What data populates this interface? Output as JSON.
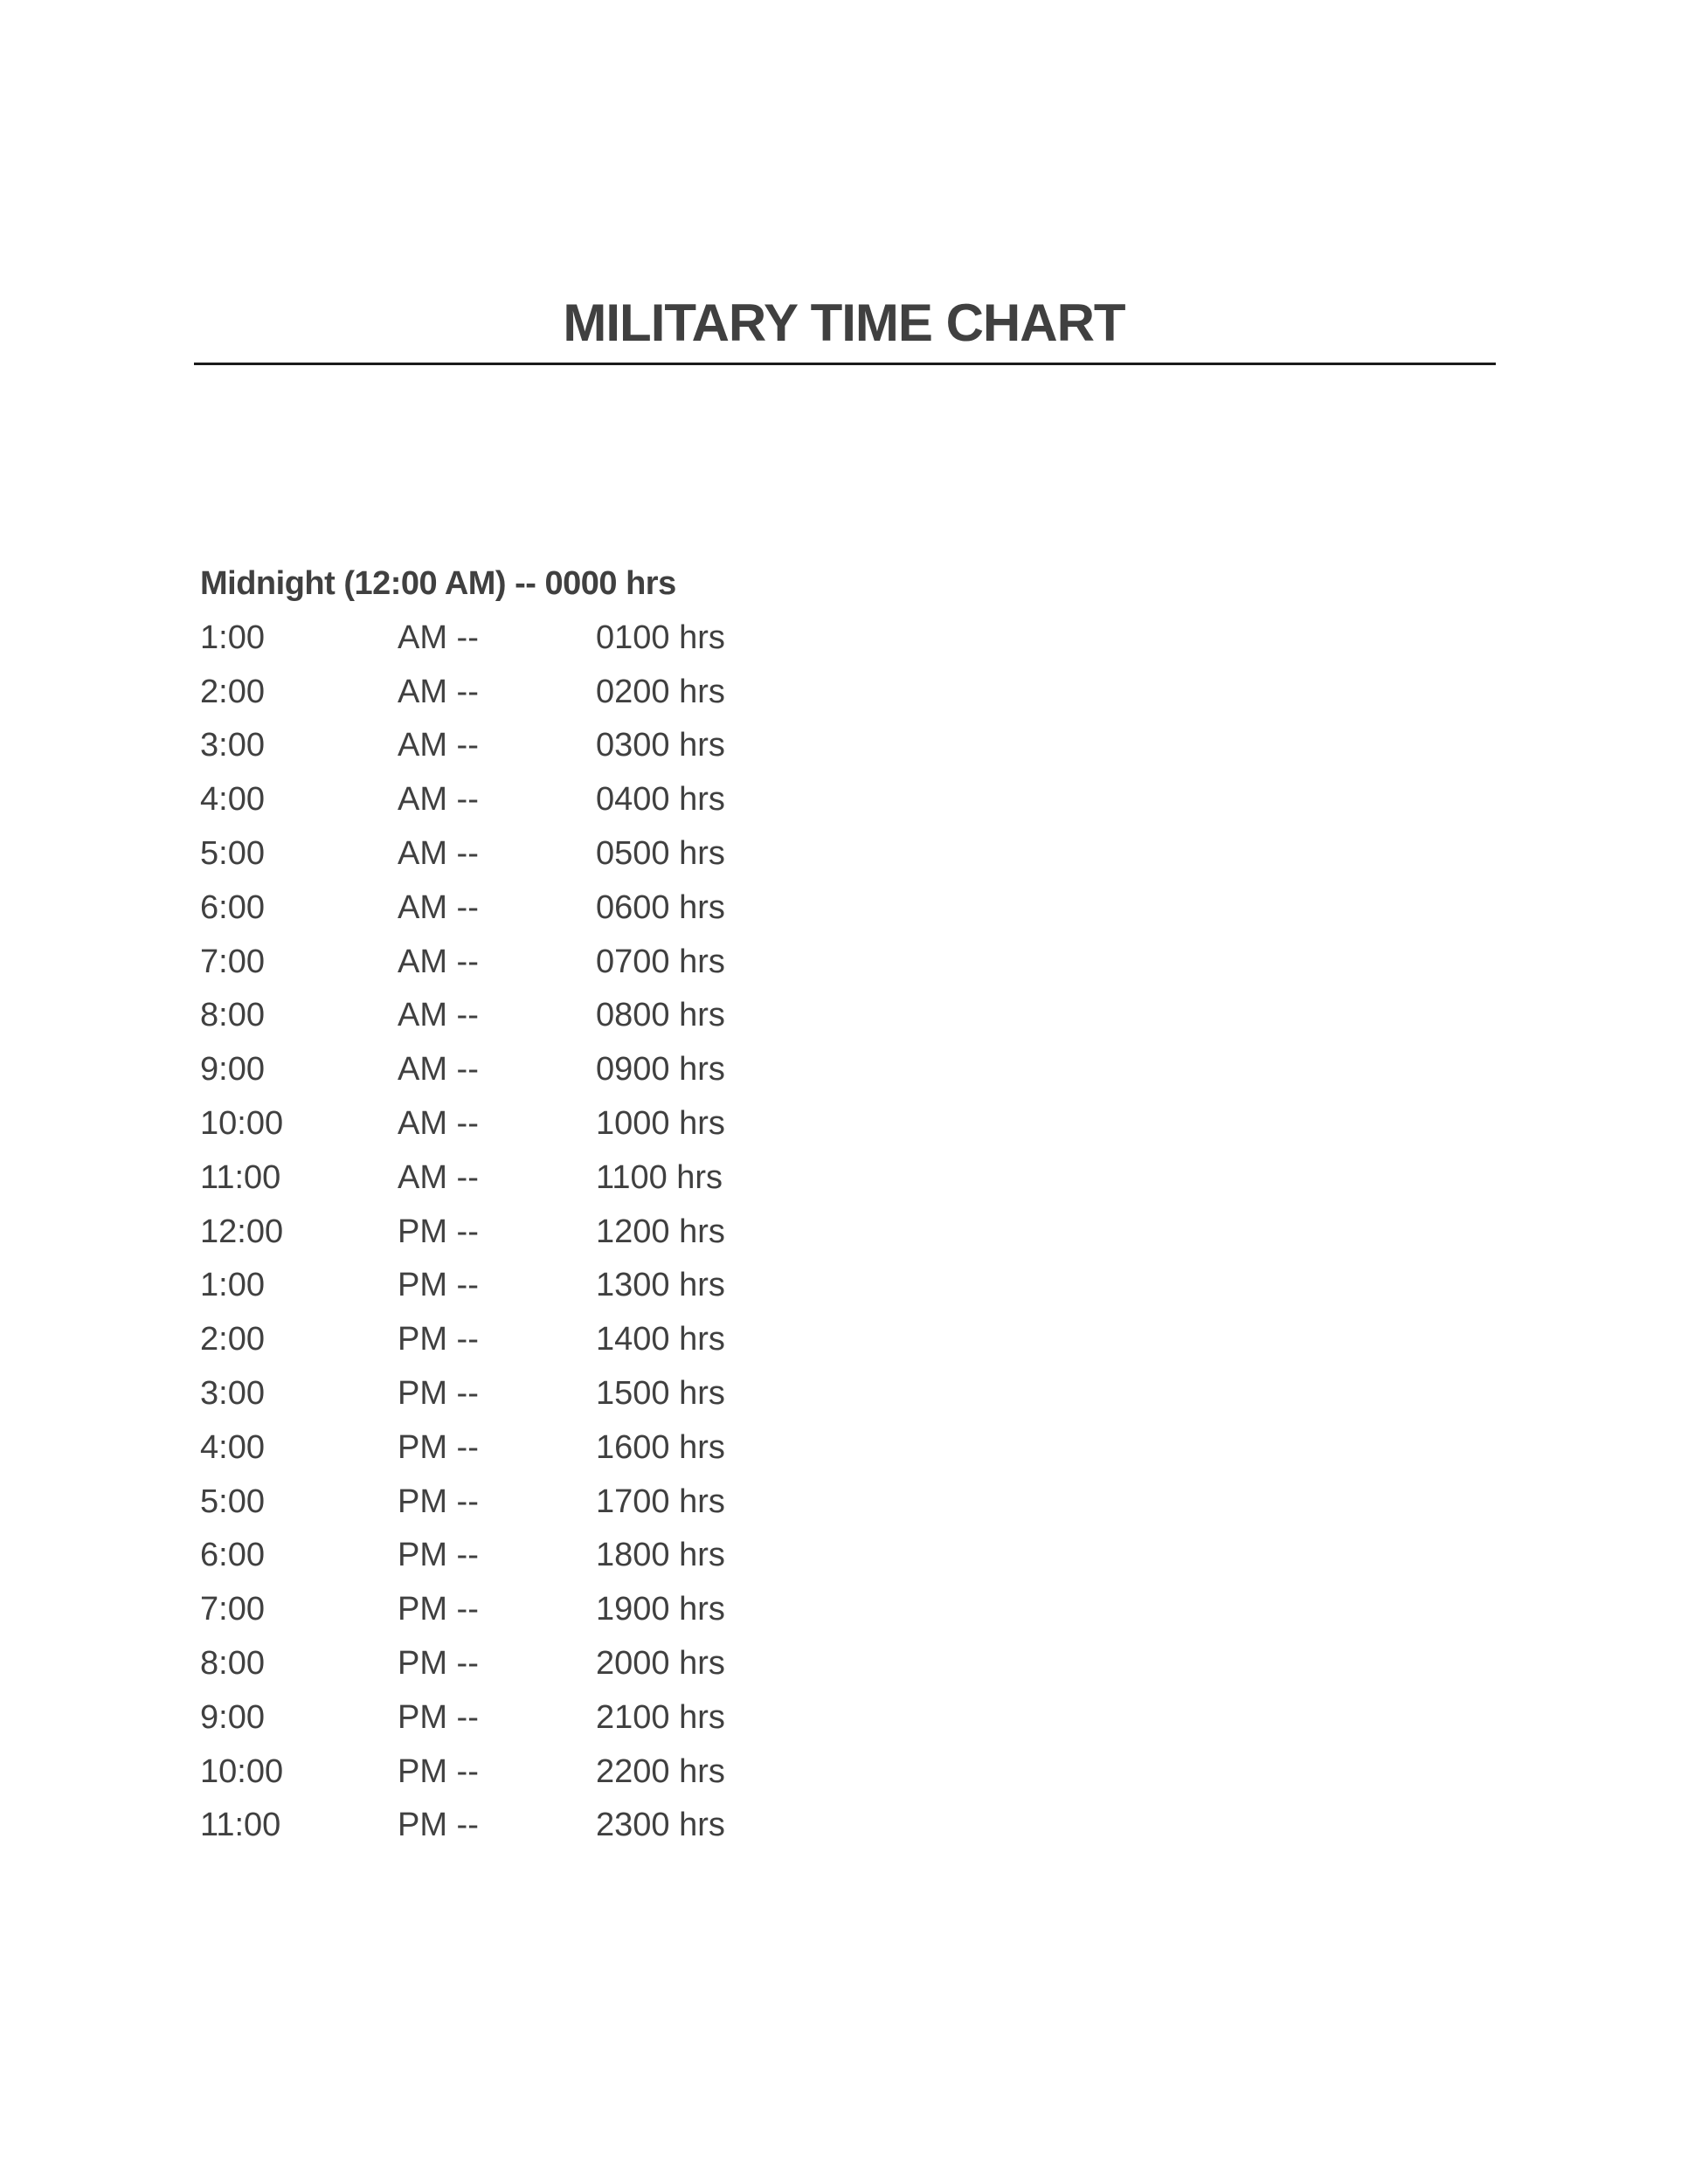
{
  "title": "MILITARY TIME CHART",
  "header_row": "Midnight (12:00 AM) -- 0000 hrs",
  "rows": [
    {
      "time": "1:00",
      "period": "AM --",
      "military": "0100 hrs"
    },
    {
      "time": "2:00",
      "period": "AM --",
      "military": "0200 hrs"
    },
    {
      "time": "3:00",
      "period": "AM --",
      "military": "0300 hrs"
    },
    {
      "time": "4:00",
      "period": "AM --",
      "military": "0400 hrs"
    },
    {
      "time": "5:00",
      "period": "AM --",
      "military": "0500 hrs"
    },
    {
      "time": "6:00",
      "period": "AM --",
      "military": "0600 hrs"
    },
    {
      "time": "7:00",
      "period": "AM --",
      "military": "0700 hrs"
    },
    {
      "time": "8:00",
      "period": "AM --",
      "military": "0800 hrs"
    },
    {
      "time": "9:00",
      "period": "AM --",
      "military": "0900 hrs"
    },
    {
      "time": "10:00",
      "period": "AM --",
      "military": "1000 hrs"
    },
    {
      "time": "11:00",
      "period": "AM --",
      "military": "1100 hrs"
    },
    {
      "time": "12:00",
      "period": "PM --",
      "military": "1200 hrs"
    },
    {
      "time": "1:00",
      "period": "PM --",
      "military": "1300 hrs"
    },
    {
      "time": "2:00",
      "period": "PM --",
      "military": "1400 hrs"
    },
    {
      "time": "3:00",
      "period": "PM --",
      "military": "1500 hrs"
    },
    {
      "time": "4:00",
      "period": "PM --",
      "military": "1600 hrs"
    },
    {
      "time": "5:00",
      "period": "PM --",
      "military": "1700 hrs"
    },
    {
      "time": "6:00",
      "period": "PM --",
      "military": "1800 hrs"
    },
    {
      "time": "7:00",
      "period": "PM --",
      "military": "1900 hrs"
    },
    {
      "time": "8:00",
      "period": "PM --",
      "military": "2000 hrs"
    },
    {
      "time": "9:00",
      "period": "PM --",
      "military": "2100 hrs"
    },
    {
      "time": "10:00",
      "period": "PM --",
      "military": "2200 hrs"
    },
    {
      "time": "11:00",
      "period": "PM --",
      "military": "2300 hrs"
    }
  ],
  "colors": {
    "text": "#404040",
    "rule": "#1a1a1a"
  }
}
